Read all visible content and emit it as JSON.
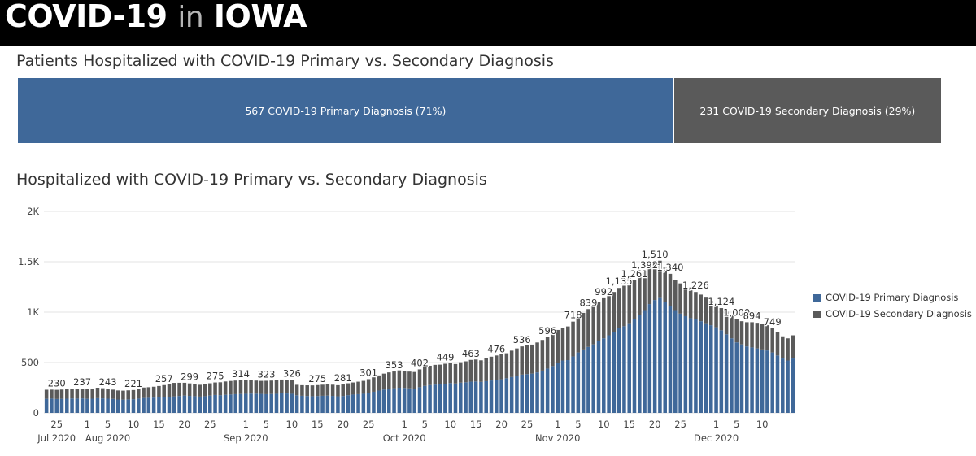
{
  "banner": {
    "brand_prefix": "COVID-19",
    "brand_in": "in",
    "brand_suffix": "IOWA"
  },
  "summary": {
    "title": "Patients Hospitalized with COVID-19 Primary vs. Secondary Diagnosis",
    "primary_label": "567 COVID-19 Primary Diagnosis (71%)",
    "secondary_label": "231 COVID-19 Secondary Diagnosis (29%)",
    "primary_value": 567,
    "secondary_value": 231,
    "primary_color": "#3f6899",
    "secondary_color": "#5a5a5a"
  },
  "chart_title": "Hospitalized with COVID-19 Primary vs. Secondary Diagnosis",
  "legend": {
    "primary": "COVID-19 Primary Diagnosis",
    "secondary": "COVID-19 Secondary Diagnosis",
    "placement": "right"
  },
  "chart_data": {
    "type": "bar",
    "stacked": true,
    "start_date": "2020-06-23",
    "ylim": [
      0,
      2000
    ],
    "yticks": [
      0,
      500,
      1000,
      1500,
      2000
    ],
    "ytick_labels": [
      "0",
      "500",
      "1K",
      "1.5K",
      "2K"
    ],
    "grid": true,
    "xtick_labels": [
      {
        "date": "2020-06-25",
        "day": "25",
        "month": "Jul 2020"
      },
      {
        "date": "2020-07-01",
        "day": "1",
        "month": ""
      },
      {
        "date": "2020-07-05",
        "day": "5",
        "month": "Aug 2020"
      },
      {
        "date": "2020-07-10",
        "day": "10",
        "month": ""
      },
      {
        "date": "2020-07-15",
        "day": "15",
        "month": ""
      },
      {
        "date": "2020-07-20",
        "day": "20",
        "month": ""
      },
      {
        "date": "2020-07-25",
        "day": "25",
        "month": ""
      },
      {
        "date": "2020-08-01",
        "day": "1",
        "month": "Sep 2020"
      },
      {
        "date": "2020-08-05",
        "day": "5",
        "month": ""
      },
      {
        "date": "2020-08-10",
        "day": "10",
        "month": ""
      },
      {
        "date": "2020-08-15",
        "day": "15",
        "month": ""
      },
      {
        "date": "2020-08-20",
        "day": "20",
        "month": ""
      },
      {
        "date": "2020-08-25",
        "day": "25",
        "month": ""
      },
      {
        "date": "2020-09-01",
        "day": "1",
        "month": "Oct 2020"
      },
      {
        "date": "2020-09-05",
        "day": "5",
        "month": ""
      },
      {
        "date": "2020-09-10",
        "day": "10",
        "month": ""
      },
      {
        "date": "2020-09-15",
        "day": "15",
        "month": ""
      },
      {
        "date": "2020-09-20",
        "day": "20",
        "month": ""
      },
      {
        "date": "2020-09-25",
        "day": "25",
        "month": ""
      },
      {
        "date": "2020-10-01",
        "day": "1",
        "month": "Nov 2020"
      },
      {
        "date": "2020-10-05",
        "day": "5",
        "month": ""
      },
      {
        "date": "2020-10-10",
        "day": "10",
        "month": ""
      },
      {
        "date": "2020-10-15",
        "day": "15",
        "month": ""
      },
      {
        "date": "2020-10-20",
        "day": "20",
        "month": ""
      },
      {
        "date": "2020-10-25",
        "day": "25",
        "month": ""
      },
      {
        "date": "2020-11-01",
        "day": "1",
        "month": "Dec 2020"
      },
      {
        "date": "2020-11-05",
        "day": "5",
        "month": ""
      },
      {
        "date": "2020-11-10",
        "day": "10",
        "month": ""
      }
    ],
    "data_labels": [
      {
        "date": "2020-06-25",
        "text": "230"
      },
      {
        "date": "2020-06-30",
        "text": "237"
      },
      {
        "date": "2020-07-05",
        "text": "243"
      },
      {
        "date": "2020-07-10",
        "text": "221"
      },
      {
        "date": "2020-07-16",
        "text": "257"
      },
      {
        "date": "2020-07-21",
        "text": "299"
      },
      {
        "date": "2020-07-26",
        "text": "275"
      },
      {
        "date": "2020-07-31",
        "text": "314"
      },
      {
        "date": "2020-08-05",
        "text": "323"
      },
      {
        "date": "2020-08-10",
        "text": "326"
      },
      {
        "date": "2020-08-15",
        "text": "275"
      },
      {
        "date": "2020-08-20",
        "text": "281"
      },
      {
        "date": "2020-08-25",
        "text": "301"
      },
      {
        "date": "2020-08-30",
        "text": "353"
      },
      {
        "date": "2020-09-04",
        "text": "402"
      },
      {
        "date": "2020-09-09",
        "text": "449"
      },
      {
        "date": "2020-09-14",
        "text": "463"
      },
      {
        "date": "2020-09-19",
        "text": "476"
      },
      {
        "date": "2020-09-24",
        "text": "536"
      },
      {
        "date": "2020-09-29",
        "text": "596"
      },
      {
        "date": "2020-10-04",
        "text": "718"
      },
      {
        "date": "2020-10-07",
        "text": "839"
      },
      {
        "date": "2020-10-10",
        "text": "992"
      },
      {
        "date": "2020-10-13",
        "text": "1,135"
      },
      {
        "date": "2020-10-16",
        "text": "1,261"
      },
      {
        "date": "2020-10-18",
        "text": "1,392"
      },
      {
        "date": "2020-10-20",
        "text": "1,510"
      },
      {
        "date": "2020-10-23",
        "text": "1,340"
      },
      {
        "date": "2020-10-28",
        "text": "1,226"
      },
      {
        "date": "2020-11-02",
        "text": "1,124"
      },
      {
        "date": "2020-11-05",
        "text": "1,000"
      },
      {
        "date": "2020-11-08",
        "text": "894"
      },
      {
        "date": "2020-11-12",
        "text": "749"
      }
    ],
    "series": [
      {
        "name": "COVID-19 Primary Diagnosis",
        "color": "#3f6899",
        "values": [
          140,
          142,
          138,
          140,
          141,
          143,
          142,
          144,
          140,
          141,
          146,
          144,
          141,
          139,
          133,
          132,
          134,
          136,
          142,
          148,
          150,
          152,
          154,
          156,
          160,
          164,
          168,
          172,
          169,
          166,
          162,
          166,
          172,
          178,
          176,
          180,
          183,
          186,
          188,
          190,
          192,
          191,
          189,
          186,
          188,
          190,
          195,
          193,
          190,
          175,
          170,
          168,
          166,
          168,
          170,
          172,
          169,
          165,
          168,
          176,
          182,
          186,
          190,
          200,
          210,
          222,
          232,
          240,
          245,
          250,
          248,
          244,
          242,
          255,
          268,
          276,
          281,
          283,
          290,
          296,
          292,
          300,
          304,
          310,
          312,
          308,
          315,
          322,
          328,
          334,
          344,
          356,
          368,
          380,
          385,
          390,
          402,
          420,
          440,
          465,
          498,
          520,
          524,
          560,
          600,
          630,
          655,
          680,
          710,
          740,
          770,
          800,
          840,
          860,
          890,
          930,
          970,
          1020,
          1080,
          1120,
          1140,
          1100,
          1060,
          1020,
          985,
          960,
          940,
          930,
          910,
          890,
          870,
          850,
          820,
          780,
          740,
          700,
          680,
          660,
          650,
          640,
          630,
          620,
          600,
          570,
          540,
          520,
          540
        ]
      },
      {
        "name": "COVID-19 Secondary Diagnosis",
        "color": "#5a5a5a",
        "values": [
          90,
          89,
          91,
          92,
          93,
          94,
          95,
          96,
          100,
          101,
          104,
          101,
          99,
          92,
          90,
          89,
          90,
          91,
          98,
          104,
          105,
          108,
          113,
          120,
          129,
          134,
          131,
          127,
          124,
          120,
          117,
          118,
          122,
          124,
          128,
          132,
          134,
          135,
          136,
          133,
          131,
          130,
          129,
          133,
          133,
          134,
          136,
          135,
          136,
          104,
          105,
          106,
          107,
          108,
          110,
          112,
          111,
          110,
          114,
          118,
          120,
          124,
          128,
          135,
          143,
          150,
          158,
          162,
          166,
          172,
          170,
          166,
          164,
          177,
          190,
          192,
          196,
          196,
          198,
          198,
          193,
          203,
          208,
          216,
          218,
          214,
          226,
          236,
          242,
          248,
          248,
          262,
          272,
          280,
          285,
          288,
          297,
          304,
          310,
          320,
          325,
          326,
          334,
          346,
          352,
          362,
          375,
          382,
          390,
          398,
          400,
          400,
          400,
          402,
          399,
          385,
          390,
          385,
          395,
          390,
          370,
          340,
          320,
          300,
          300,
          290,
          276,
          270,
          264,
          254,
          240,
          230,
          220,
          225,
          230,
          230,
          230,
          240,
          250,
          254,
          250,
          250,
          240,
          230,
          220,
          220,
          230
        ]
      }
    ]
  }
}
